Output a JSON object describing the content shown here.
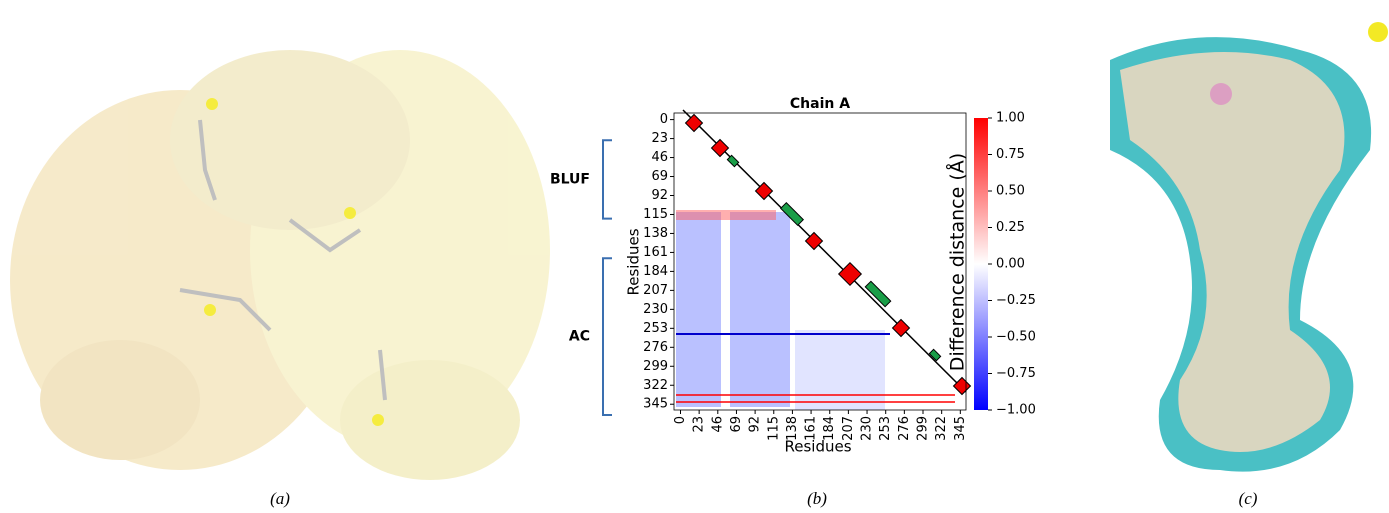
{
  "panels": [
    {
      "label": "(a)"
    },
    {
      "label": "(b)"
    },
    {
      "label": "(c)"
    }
  ],
  "heatmap": {
    "title": "Chain A",
    "xlabel": "Residues",
    "ylabel": "Residues",
    "lim": [
      -8,
      352
    ],
    "ticks": [
      0,
      23,
      46,
      69,
      92,
      115,
      138,
      161,
      184,
      207,
      230,
      253,
      276,
      299,
      322,
      345
    ],
    "domains": [
      {
        "label": "BLUF",
        "range": [
          25,
          120
        ]
      },
      {
        "label": "AC",
        "range": [
          168,
          358
        ]
      }
    ],
    "colorbar": {
      "label": "Difference distance (Å)",
      "lim": [
        -1,
        1
      ],
      "ticks": [
        {
          "value": 1,
          "label": "1.00"
        },
        {
          "value": 0.75,
          "label": "0.75"
        },
        {
          "value": 0.5,
          "label": "0.50"
        },
        {
          "value": 0.25,
          "label": "0.25"
        },
        {
          "value": 0,
          "label": "0.00"
        },
        {
          "value": -0.25,
          "label": "−0.25"
        },
        {
          "value": -0.5,
          "label": "−0.50"
        },
        {
          "value": -0.75,
          "label": "−0.75"
        },
        {
          "value": -1,
          "label": "−1.00"
        }
      ]
    }
  }
}
